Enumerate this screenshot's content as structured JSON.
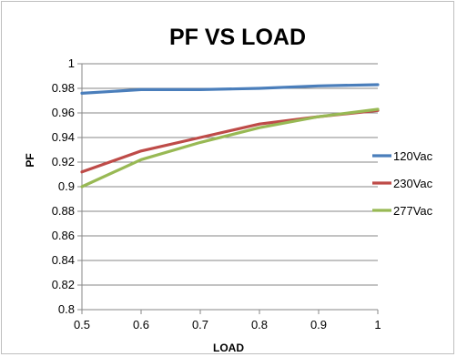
{
  "chart_data": {
    "type": "line",
    "title": "PF VS LOAD",
    "xlabel": "LOAD",
    "ylabel": "PF",
    "x": [
      0.5,
      0.6,
      0.7,
      0.8,
      0.9,
      1
    ],
    "x_ticks": [
      "0.5",
      "0.6",
      "0.7",
      "0.8",
      "0.9",
      "1"
    ],
    "y_ticks": [
      "0.8",
      "0.82",
      "0.84",
      "0.86",
      "0.88",
      "0.9",
      "0.92",
      "0.94",
      "0.96",
      "0.98",
      "1"
    ],
    "xlim": [
      0.5,
      1
    ],
    "ylim": [
      0.8,
      1
    ],
    "grid": true,
    "legend_position": "right",
    "series": [
      {
        "name": "120Vac",
        "color": "#4a7ebb",
        "values": [
          0.976,
          0.979,
          0.979,
          0.98,
          0.982,
          0.983
        ]
      },
      {
        "name": "230Vac",
        "color": "#be4b48",
        "values": [
          0.912,
          0.929,
          0.94,
          0.951,
          0.957,
          0.962
        ]
      },
      {
        "name": "277Vac",
        "color": "#98b954",
        "values": [
          0.9,
          0.922,
          0.936,
          0.948,
          0.957,
          0.963
        ]
      }
    ]
  }
}
